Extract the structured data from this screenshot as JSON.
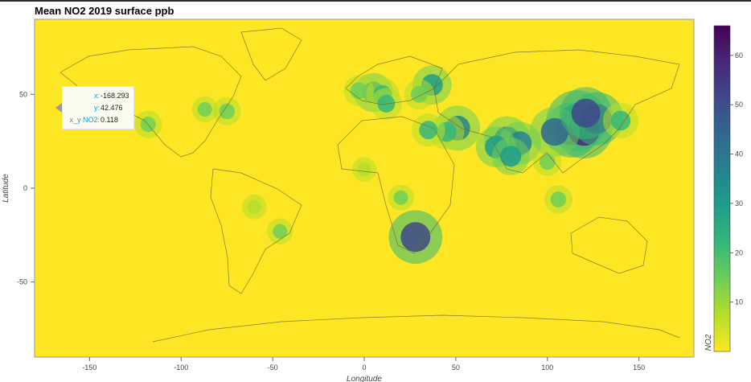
{
  "chart_data": {
    "type": "heatmap",
    "title": "Mean NO2 2019 surface ppb",
    "xlabel": "Longitude",
    "ylabel": "Latitude",
    "xlim": [
      -180,
      180
    ],
    "ylim": [
      -90,
      90
    ],
    "xticks": [
      -150,
      -100,
      -50,
      0,
      50,
      100,
      150
    ],
    "yticks": [
      -50,
      0,
      50
    ],
    "colorbar": {
      "label": "NO2",
      "range": [
        0,
        66
      ],
      "ticks": [
        10,
        20,
        30,
        40,
        50,
        60
      ],
      "colormap": [
        "#fde725",
        "#b5de2b",
        "#6ece58",
        "#35b779",
        "#1f9e89",
        "#26828e",
        "#31688e",
        "#3e4989",
        "#482878",
        "#440154"
      ]
    },
    "background_value": 0.1,
    "hotspots": [
      {
        "lon": 116,
        "lat": 36,
        "value": 60
      },
      {
        "lon": 113,
        "lat": 31,
        "value": 52
      },
      {
        "lon": 120,
        "lat": 31,
        "value": 55
      },
      {
        "lon": 104,
        "lat": 30,
        "value": 45
      },
      {
        "lon": 127,
        "lat": 37,
        "value": 50
      },
      {
        "lon": 121,
        "lat": 40,
        "value": 48
      },
      {
        "lon": 78,
        "lat": 26,
        "value": 40
      },
      {
        "lon": 85,
        "lat": 24,
        "value": 35
      },
      {
        "lon": 72,
        "lat": 22,
        "value": 32
      },
      {
        "lon": 80,
        "lat": 17,
        "value": 28
      },
      {
        "lon": 51,
        "lat": 32,
        "value": 38
      },
      {
        "lon": 45,
        "lat": 30,
        "value": 25
      },
      {
        "lon": 35,
        "lat": 31,
        "value": 22
      },
      {
        "lon": 28,
        "lat": -26,
        "value": 50
      },
      {
        "lon": 5,
        "lat": 51,
        "value": 30
      },
      {
        "lon": 10,
        "lat": 50,
        "value": 22
      },
      {
        "lon": 37,
        "lat": 55,
        "value": 30
      },
      {
        "lon": 30,
        "lat": 50,
        "value": 18
      },
      {
        "lon": 12,
        "lat": 45,
        "value": 20
      },
      {
        "lon": -3,
        "lat": 52,
        "value": 18
      },
      {
        "lon": -75,
        "lat": 41,
        "value": 15
      },
      {
        "lon": -87,
        "lat": 42,
        "value": 12
      },
      {
        "lon": -118,
        "lat": 34,
        "value": 14
      },
      {
        "lon": -46,
        "lat": -23,
        "value": 12
      },
      {
        "lon": 100,
        "lat": 14,
        "value": 15
      },
      {
        "lon": 106,
        "lat": -6,
        "value": 15
      },
      {
        "lon": 0,
        "lat": 10,
        "value": 10
      },
      {
        "lon": 20,
        "lat": -5,
        "value": 12
      },
      {
        "lon": -60,
        "lat": -10,
        "value": 10
      },
      {
        "lon": 140,
        "lat": 36,
        "value": 25
      }
    ]
  },
  "tooltip": {
    "x_label": "x:",
    "x_value": "-168.293",
    "y_label": "y:",
    "y_value": "42.476",
    "z_label": "x_y NO2:",
    "z_value": "0.118"
  }
}
